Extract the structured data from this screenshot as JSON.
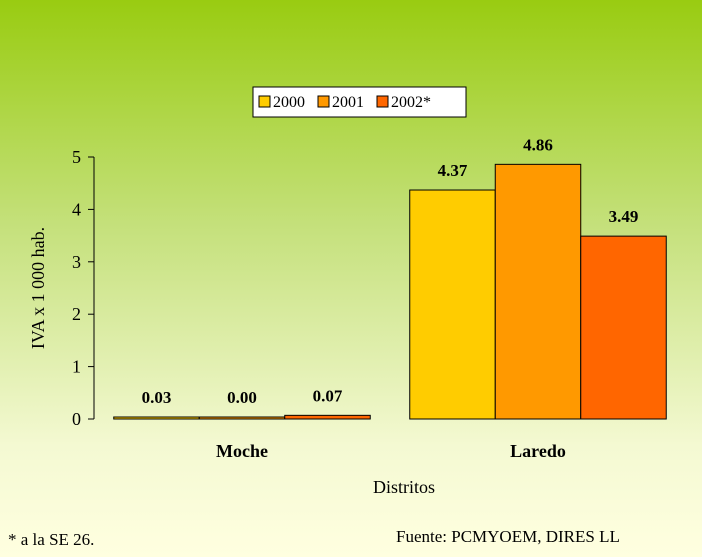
{
  "chart_data": {
    "type": "bar",
    "categories": [
      "Moche",
      "Laredo"
    ],
    "series": [
      {
        "name": "2000",
        "values": [
          0.03,
          4.37
        ],
        "color": "#ffcc00"
      },
      {
        "name": "2001",
        "values": [
          0.0,
          4.86
        ],
        "color": "#ff9900"
      },
      {
        "name": "2002*",
        "values": [
          0.07,
          3.49
        ],
        "color": "#ff6600"
      }
    ],
    "data_labels": [
      [
        "0.03",
        "0.00",
        "0.07"
      ],
      [
        "4.37",
        "4.86",
        "3.49"
      ]
    ],
    "ylabel": "IVA x 1 000 hab.",
    "xlabel": "Distritos",
    "ylim": [
      0,
      5
    ],
    "yticks": [
      "0",
      "1",
      "2",
      "3",
      "4",
      "5"
    ],
    "grid": false,
    "legend_position": "top-center"
  },
  "footnote": "* a la SE 26.",
  "source": "Fuente: PCMYOEM, DIRES LL"
}
